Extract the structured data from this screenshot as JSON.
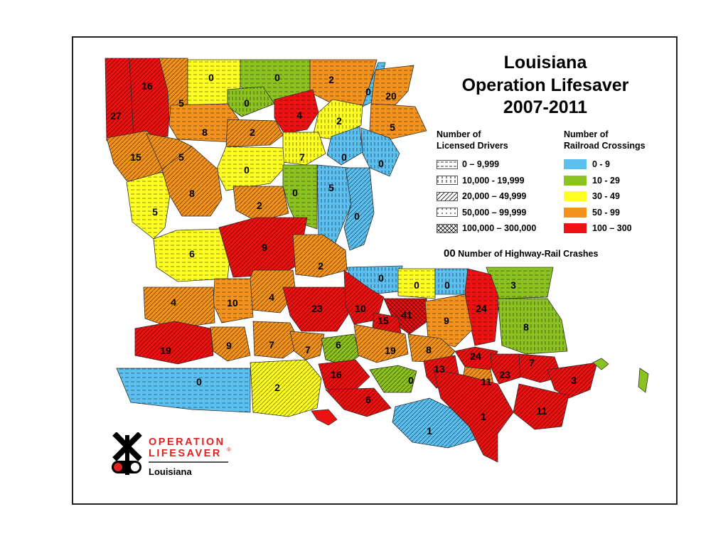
{
  "title_lines": [
    "Louisiana",
    "Operation Lifesaver",
    "2007-2011"
  ],
  "legend": {
    "drivers_heading": [
      "Number of",
      "Licensed Drivers"
    ],
    "drivers": [
      {
        "label": "0 – 9,999",
        "pattern": "dash-light"
      },
      {
        "label": "10,000 - 19,999",
        "pattern": "vert"
      },
      {
        "label": "20,000 – 49,999",
        "pattern": "diag"
      },
      {
        "label": "50,000 – 99,999",
        "pattern": "dots"
      },
      {
        "label": "100,000 – 300,000",
        "pattern": "cross"
      }
    ],
    "crossings_heading": [
      "Number of",
      "Railroad Crossings"
    ],
    "crossings": [
      {
        "label": "0 - 9",
        "color": "#5bc0f0"
      },
      {
        "label": "10 - 29",
        "color": "#8cc21f"
      },
      {
        "label": "30 - 49",
        "color": "#ffff22"
      },
      {
        "label": "50 - 99",
        "color": "#f4921e"
      },
      {
        "label": "100 – 300",
        "color": "#ee1111"
      }
    ],
    "crash_prefix": "00",
    "crash_label": "Number of Highway-Rail Crashes"
  },
  "crash_counts": [
    "27",
    "16",
    "5",
    "0",
    "0",
    "2",
    "0",
    "0",
    "4",
    "20",
    "2",
    "5",
    "8",
    "2",
    "15",
    "5",
    "7",
    "0",
    "0",
    "5",
    "0",
    "8",
    "2",
    "0",
    "5",
    "0",
    "6",
    "9",
    "2",
    "0",
    "0",
    "0",
    "3",
    "4",
    "10",
    "4",
    "23",
    "10",
    "41",
    "15",
    "24",
    "9",
    "19",
    "9",
    "7",
    "7",
    "6",
    "19",
    "8",
    "8",
    "24",
    "13",
    "16",
    "0",
    "0",
    "2",
    "6",
    "11",
    "23",
    "7",
    "3",
    "11",
    "1",
    "1"
  ],
  "logo": {
    "line1": "OPERATION",
    "line2": "LIFESAVER",
    "registered": "®",
    "line3": "Louisiana"
  }
}
